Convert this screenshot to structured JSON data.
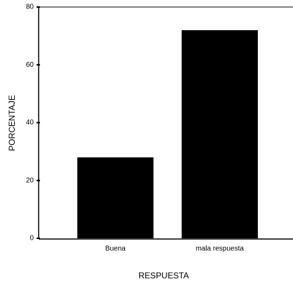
{
  "chart_data": {
    "type": "bar",
    "categories": [
      "Buena",
      "mala respuesta"
    ],
    "values": [
      28,
      72
    ],
    "color": "#000000",
    "xlabel": "RESPUESTA",
    "ylabel": "PORCENTAJE",
    "ylim": [
      0,
      80
    ],
    "yticks": [
      0,
      20,
      40,
      60,
      80
    ],
    "grid": false
  }
}
